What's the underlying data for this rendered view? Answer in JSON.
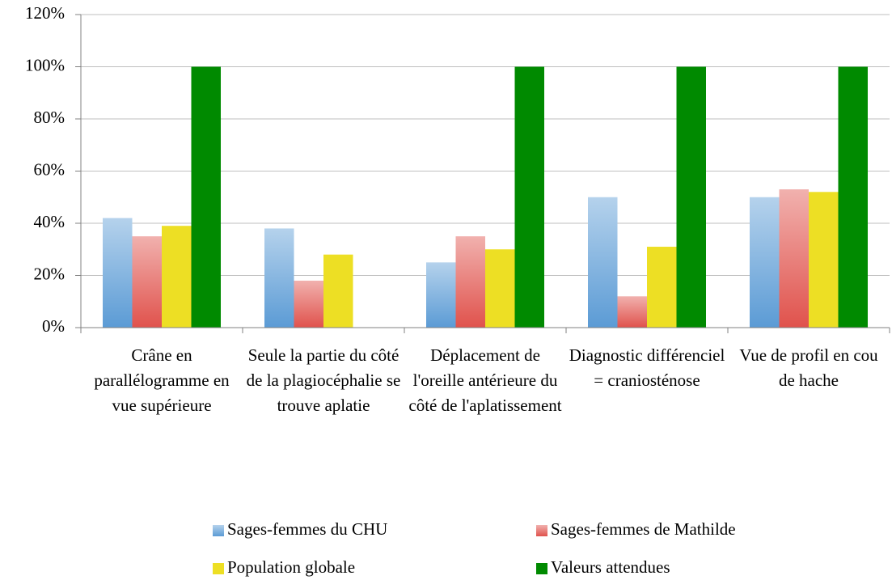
{
  "chart_data": {
    "type": "bar",
    "categories": [
      "Crâne en parallélogramme en vue supérieure",
      "Seule la partie du côté de la plagiocéphalie se trouve aplatie",
      "Déplacement de l'oreille antérieure du côté de l'aplatissement",
      "Diagnostic différenciel = craniosténose",
      "Vue de profil en cou de hache"
    ],
    "series": [
      {
        "name": "Sages-femmes du CHU",
        "color": "#5b9bd5",
        "gradient": true,
        "values": [
          42,
          38,
          25,
          50,
          50
        ]
      },
      {
        "name": "Sages-femmes de Mathilde",
        "color": "#e0524c",
        "gradient": true,
        "values": [
          35,
          18,
          35,
          12,
          53
        ]
      },
      {
        "name": "Population globale",
        "color": "#eddf24",
        "values": [
          39,
          28,
          30,
          31,
          52
        ]
      },
      {
        "name": "Valeurs attendues",
        "color": "#008a00",
        "values": [
          100,
          0,
          100,
          100,
          100
        ]
      }
    ],
    "ylim": [
      0,
      120
    ],
    "yticks": [
      {
        "value": 0,
        "label": "0%"
      },
      {
        "value": 20,
        "label": "20%"
      },
      {
        "value": 40,
        "label": "40%"
      },
      {
        "value": 60,
        "label": "60%"
      },
      {
        "value": 80,
        "label": "80%"
      },
      {
        "value": 100,
        "label": "100%"
      },
      {
        "value": 120,
        "label": "120%"
      }
    ],
    "grid": true
  }
}
